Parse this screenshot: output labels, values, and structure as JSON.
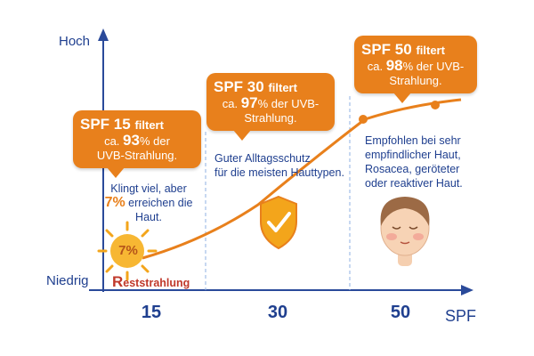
{
  "axes": {
    "y_high": "Hoch",
    "y_low": "Niedrig",
    "x_label": "SPF",
    "ticks": [
      "15",
      "30",
      "50"
    ]
  },
  "bubbles": [
    {
      "title": "SPF 15",
      "title_suffix": "filtert",
      "prefix": "ca.",
      "percent": "93",
      "unit": "%",
      "rest1": " der",
      "line2": "UVB-Strahlung."
    },
    {
      "title": "SPF 30",
      "title_suffix": "filtert",
      "prefix": "ca.",
      "percent": "97",
      "unit": "%",
      "rest1": " der UVB-",
      "line2": "Strahlung."
    },
    {
      "title": "SPF 50",
      "title_suffix": "filtert",
      "prefix": "ca.",
      "percent": "98",
      "unit": "%",
      "rest1": " der UVB-",
      "line2": "Strahlung."
    }
  ],
  "zone1": {
    "line1": "Klingt viel, aber",
    "percent": "7%",
    "line2_rest": " erreichen die",
    "line3": "Haut.",
    "sun_value": "7%",
    "rest_first": "R",
    "rest_rest": "eststrahlung"
  },
  "zone2": {
    "line1": "Guter Alltagsschutz",
    "line2": "für die meisten Hauttypen."
  },
  "zone3": {
    "line1": "Empfohlen bei sehr",
    "line2": "empfindlicher Haut,",
    "line3": "Rosacea, geröteter",
    "line4": "oder reaktiver Haut."
  },
  "colors": {
    "axis": "#2a4a9a",
    "curve": "#e8801c",
    "bubble": "#e8801c",
    "text": "#1f3f8f",
    "red": "#c0392b"
  },
  "icons": [
    "sun-icon",
    "shield-check-icon",
    "face-icon"
  ]
}
